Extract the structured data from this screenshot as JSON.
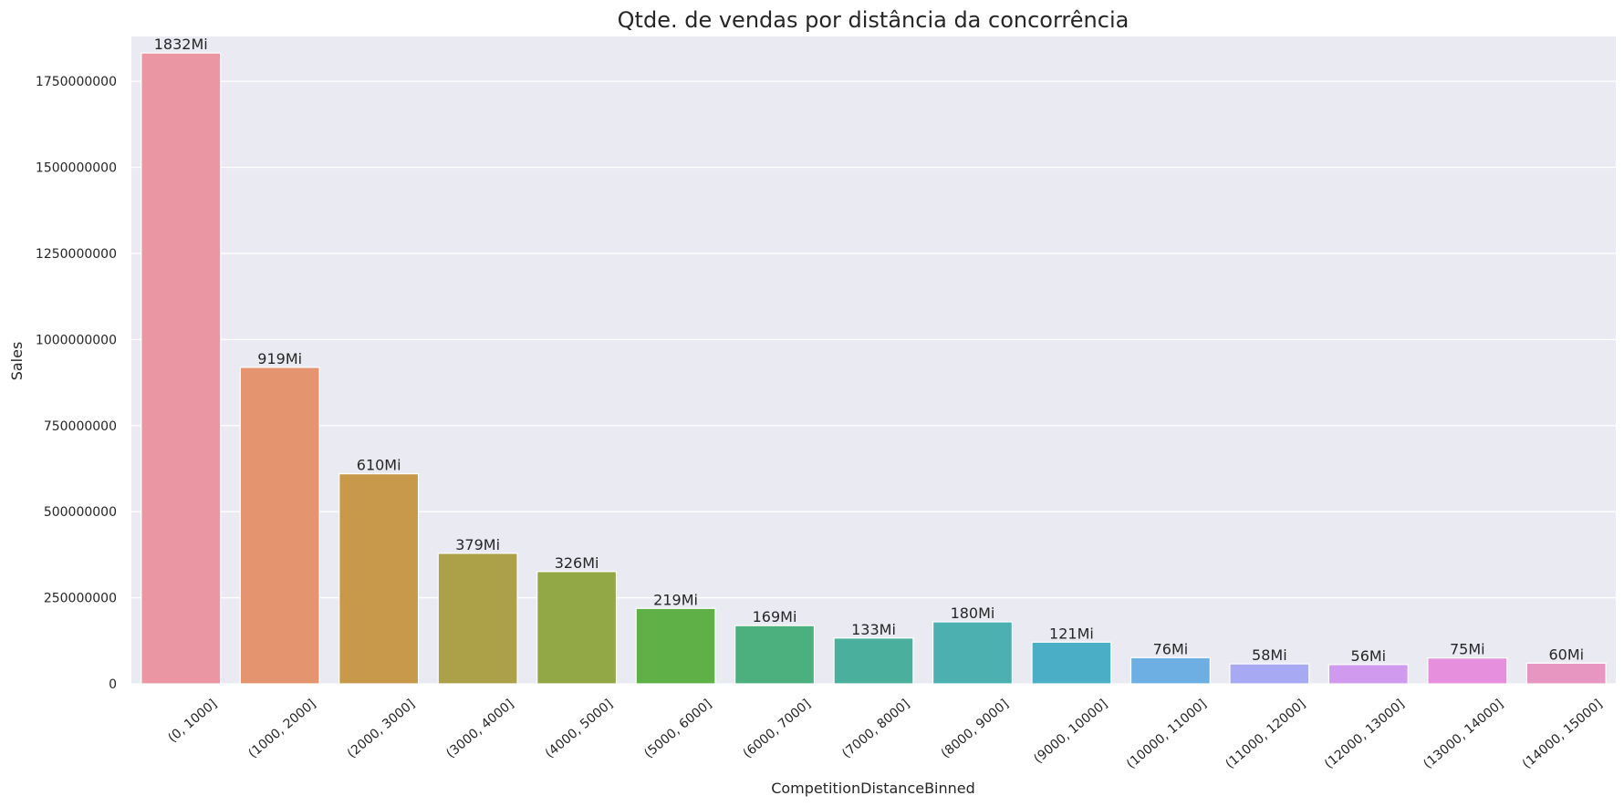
{
  "chart_data": {
    "type": "bar",
    "title": "Qtde. de vendas por distância da concorrência",
    "xlabel": "CompetitionDistanceBinned",
    "ylabel": "Sales",
    "ylim": [
      0,
      1880000000
    ],
    "yticks": [
      0,
      250000000,
      500000000,
      750000000,
      1000000000,
      1250000000,
      1500000000,
      1750000000
    ],
    "ytick_labels": [
      "0",
      "250000000",
      "500000000",
      "750000000",
      "1000000000",
      "1250000000",
      "1500000000",
      "1750000000"
    ],
    "grid": true,
    "categories": [
      "(0, 1000]",
      "(1000, 2000]",
      "(2000, 3000]",
      "(3000, 4000]",
      "(4000, 5000]",
      "(5000, 6000]",
      "(6000, 7000]",
      "(7000, 8000]",
      "(8000, 9000]",
      "(9000, 10000]",
      "(10000, 11000]",
      "(11000, 12000]",
      "(12000, 13000]",
      "(13000, 14000]",
      "(14000, 15000]"
    ],
    "values": [
      1832000000,
      919000000,
      610000000,
      379000000,
      326000000,
      219000000,
      169000000,
      133000000,
      180000000,
      121000000,
      76000000,
      58000000,
      56000000,
      75000000,
      60000000
    ],
    "data_labels": [
      "1832Mi",
      "919Mi",
      "610Mi",
      "379Mi",
      "326Mi",
      "219Mi",
      "169Mi",
      "133Mi",
      "180Mi",
      "121Mi",
      "76Mi",
      "58Mi",
      "56Mi",
      "75Mi",
      "60Mi"
    ],
    "colors": [
      "#ea96a3",
      "#e4946f",
      "#c8994a",
      "#aca049",
      "#92a746",
      "#5fb046",
      "#4bb07e",
      "#4aaf9c",
      "#4cb0b1",
      "#4baec7",
      "#6daee3",
      "#a8a9f3",
      "#d09bef",
      "#e68fdc",
      "#e795c1"
    ],
    "background": "#eaeaf2",
    "grid_color": "#ffffff"
  }
}
